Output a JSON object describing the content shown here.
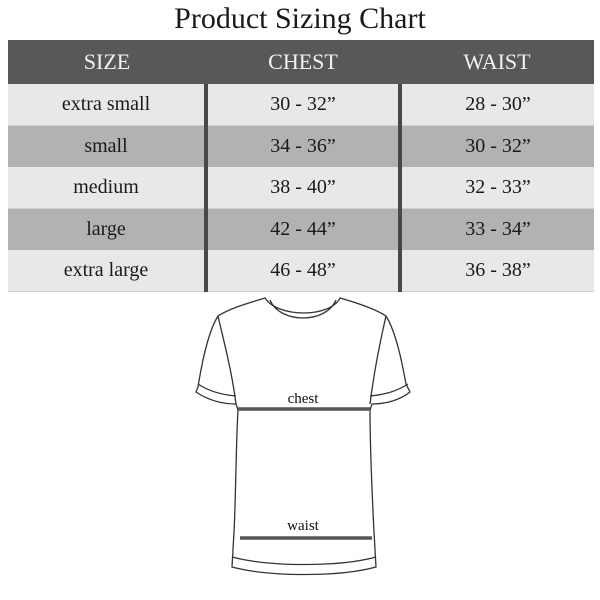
{
  "title": "Product Sizing Chart",
  "table": {
    "headers": [
      "SIZE",
      "CHEST",
      "WAIST"
    ],
    "rows": [
      [
        "extra small",
        "30 - 32”",
        "28 - 30”"
      ],
      [
        "small",
        "34 - 36”",
        "30 - 32”"
      ],
      [
        "medium",
        "38 - 40”",
        "32 - 33”"
      ],
      [
        "large",
        "42 - 44”",
        "33 - 34”"
      ],
      [
        "extra large",
        "46 - 48”",
        "36 - 38”"
      ]
    ]
  },
  "diagram": {
    "chest_label": "chest",
    "waist_label": "waist"
  },
  "colors": {
    "header": "#58585a",
    "row_light": "#e8e8e9",
    "row_dark": "#b2b2b4"
  }
}
